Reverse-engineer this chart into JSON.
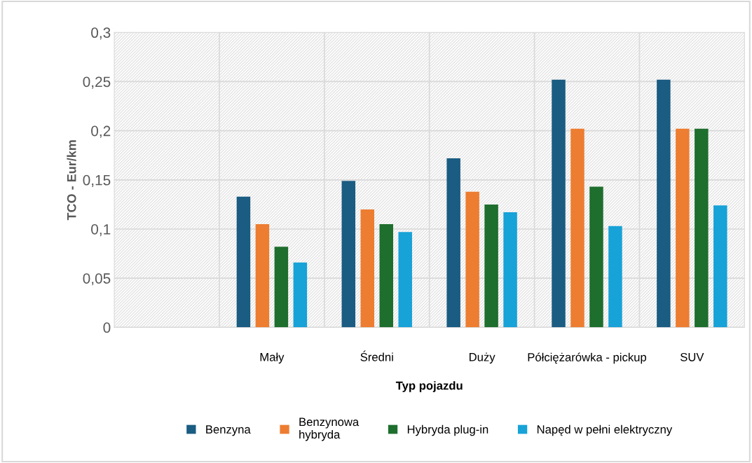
{
  "chart_data": {
    "type": "bar",
    "xlabel": "Typ pojazdu",
    "ylabel": "TCO - Eur/km",
    "categories": [
      null,
      "Mały",
      "Średni",
      "Duży",
      "Półciężarówka - pickup",
      "SUV"
    ],
    "series": [
      {
        "name": "Benzyna",
        "color": "#1a5c82",
        "values": [
          null,
          0.133,
          0.149,
          0.172,
          0.252,
          0.252
        ]
      },
      {
        "name": "Benzynowa\nhybryda",
        "color": "#ed7d31",
        "values": [
          null,
          0.105,
          0.12,
          0.138,
          0.202,
          0.202
        ]
      },
      {
        "name": "Hybryda plug-in",
        "color": "#1e6e2e",
        "values": [
          null,
          0.082,
          0.105,
          0.125,
          0.143,
          0.202
        ]
      },
      {
        "name": "Napęd w pełni elektryczny",
        "color": "#17a2d8",
        "values": [
          null,
          0.066,
          0.097,
          0.117,
          0.103,
          0.124
        ]
      }
    ],
    "ylim": [
      0,
      0.3
    ],
    "yticks": [
      {
        "value": 0,
        "label": "0"
      },
      {
        "value": 0.05,
        "label": "0,05"
      },
      {
        "value": 0.1,
        "label": "0,1"
      },
      {
        "value": 0.15,
        "label": "0,15"
      },
      {
        "value": 0.2,
        "label": "0,2"
      },
      {
        "value": 0.25,
        "label": "0,25"
      },
      {
        "value": 0.3,
        "label": "0,3"
      }
    ],
    "grid": true,
    "legend": "bottom"
  }
}
